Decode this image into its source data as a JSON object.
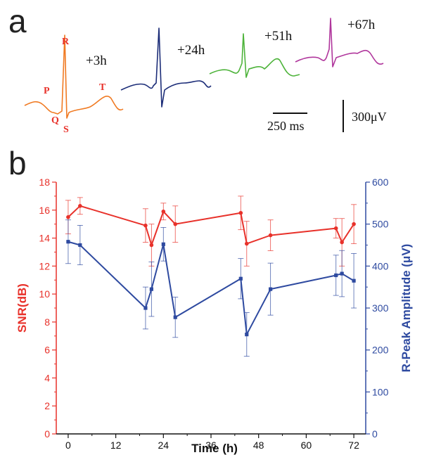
{
  "panel_a": {
    "label": "a",
    "traces": [
      {
        "time": "+3h",
        "color": "#f07a22"
      },
      {
        "time": "+24h",
        "color": "#1c2d78"
      },
      {
        "time": "+51h",
        "color": "#4db33a"
      },
      {
        "time": "+67h",
        "color": "#b0369c"
      }
    ],
    "wave_labels": {
      "p": "P",
      "q": "Q",
      "r": "R",
      "s": "S",
      "t": "T"
    },
    "time_scale": "250 ms",
    "voltage_scale": "300μV"
  },
  "panel_b": {
    "label": "b"
  },
  "chart_data": {
    "type": "line",
    "xlabel": "Time (h)",
    "ylabel_left": "SNR(dB)",
    "ylabel_right": "R-Peak Amplitude (μV)",
    "xlim": [
      -3,
      75
    ],
    "xticks": [
      0,
      12,
      24,
      36,
      48,
      60,
      72
    ],
    "ylim_left": [
      0,
      18
    ],
    "yticks_left": [
      0,
      2,
      4,
      6,
      8,
      10,
      12,
      14,
      16,
      18
    ],
    "ylim_right": [
      0,
      600
    ],
    "yticks_right": [
      0,
      100,
      200,
      300,
      400,
      500,
      600
    ],
    "grid": false,
    "colors": {
      "left": "#e8312a",
      "right": "#2e4aa0"
    },
    "series": [
      {
        "axis": "left",
        "marker": "circle",
        "x": [
          0,
          3,
          19.5,
          21,
          24,
          27,
          43.5,
          45,
          51,
          67.5,
          69,
          72
        ],
        "y": [
          15.5,
          16.3,
          14.9,
          13.5,
          15.9,
          15.0,
          15.8,
          13.6,
          14.2,
          14.7,
          13.7,
          15.0
        ],
        "err": [
          1.2,
          0.6,
          1.2,
          1.5,
          0.6,
          1.3,
          1.2,
          1.6,
          1.1,
          0.7,
          1.7,
          1.4
        ]
      },
      {
        "axis": "right",
        "marker": "square",
        "x": [
          0,
          3,
          19.5,
          21,
          24,
          27,
          43.5,
          45,
          51,
          67.5,
          69,
          72
        ],
        "y": [
          458,
          450,
          300,
          345,
          452,
          278,
          370,
          237,
          345,
          378,
          382,
          365
        ],
        "err": [
          52,
          47,
          50,
          65,
          40,
          48,
          48,
          52,
          62,
          48,
          55,
          65
        ]
      }
    ]
  }
}
